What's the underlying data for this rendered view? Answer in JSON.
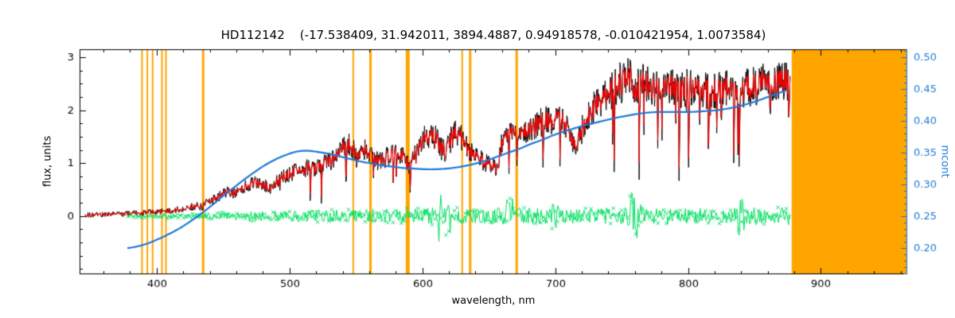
{
  "chart_data": {
    "type": "line",
    "title": "HD112142    (-17.538409, 31.942011, 3894.4887, 0.94918578, -0.010421954, 1.0073584)",
    "xlabel": "wavelength, nm",
    "ylabel_left": "flux, units",
    "ylabel_right": "mcont",
    "xlim": [
      342,
      965
    ],
    "ylim_left": [
      -1.1,
      3.15
    ],
    "ylim_right": [
      0.159,
      0.5125
    ],
    "x_ticks": [
      400,
      500,
      600,
      700,
      800,
      900
    ],
    "x_tick_labels": [
      "400",
      "500",
      "600",
      "700",
      "800",
      "900"
    ],
    "y_ticks_left": [
      0,
      1,
      2,
      3
    ],
    "y_tick_labels_left": [
      "0",
      "1",
      "2",
      "3"
    ],
    "y_ticks_right": [
      0.2,
      0.25,
      0.3,
      0.35,
      0.4,
      0.45,
      0.5
    ],
    "y_tick_labels_right": [
      "0.20",
      "0.25",
      "0.30",
      "0.35",
      "0.40",
      "0.45",
      "0.50"
    ],
    "legend": "none",
    "grid": false,
    "colors": {
      "spectrum_raw": "#000000",
      "spectrum_fit": "#ff0000",
      "residual": "#00e060",
      "continuum": "#1e78d7",
      "marker": "#ffa500",
      "background": "#ffffff"
    },
    "orange_band_nm": [
      878,
      965
    ],
    "orange_lines_nm": [
      {
        "x": 389,
        "w": 2
      },
      {
        "x": 393,
        "w": 2
      },
      {
        "x": 397,
        "w": 2
      },
      {
        "x": 404,
        "w": 2
      },
      {
        "x": 407,
        "w": 2
      },
      {
        "x": 435,
        "w": 3
      },
      {
        "x": 548,
        "w": 2
      },
      {
        "x": 561,
        "w": 3
      },
      {
        "x": 589,
        "w": 5
      },
      {
        "x": 630,
        "w": 2
      },
      {
        "x": 636,
        "w": 3
      },
      {
        "x": 671,
        "w": 3
      }
    ],
    "series": {
      "spectrum": {
        "name": "observed spectrum (black raw / red fitted)",
        "x": [
          346,
          352,
          358,
          364,
          370,
          376,
          382,
          388,
          394,
          400,
          406,
          412,
          418,
          424,
          430,
          434,
          438,
          443,
          448,
          453,
          458,
          463,
          468,
          473,
          478,
          483,
          487,
          491,
          495,
          500,
          505,
          510,
          515,
          520,
          525,
          530,
          535,
          540,
          544,
          548,
          552,
          556,
          560,
          564,
          568,
          572,
          576,
          580,
          584,
          588,
          591,
          594,
          598,
          602,
          606,
          610,
          614,
          618,
          622,
          626,
          630,
          634,
          638,
          642,
          646,
          650,
          654,
          657,
          660,
          664,
          668,
          672,
          676,
          680,
          684,
          688,
          692,
          696,
          700,
          704,
          708,
          712,
          716,
          720,
          724,
          728,
          732,
          736,
          740,
          744,
          748,
          752,
          756,
          760,
          763,
          766,
          770,
          774,
          778,
          782,
          786,
          790,
          794,
          798,
          802,
          806,
          810,
          814,
          818,
          822,
          826,
          830,
          834,
          838,
          842,
          846,
          850,
          854,
          858,
          862,
          866,
          870,
          874,
          877
        ],
        "flux": [
          0.02,
          0.02,
          0.03,
          0.03,
          0.04,
          0.04,
          0.05,
          0.06,
          0.07,
          0.09,
          0.08,
          0.1,
          0.13,
          0.16,
          0.2,
          0.17,
          0.26,
          0.32,
          0.38,
          0.45,
          0.43,
          0.52,
          0.58,
          0.62,
          0.6,
          0.57,
          0.52,
          0.66,
          0.73,
          0.78,
          0.86,
          0.82,
          0.97,
          0.88,
          1.03,
          1.02,
          1.12,
          1.25,
          1.37,
          1.28,
          1.12,
          1.27,
          1.18,
          1.04,
          1.03,
          1.1,
          1.13,
          1.2,
          1.16,
          1.05,
          0.88,
          1.14,
          1.33,
          1.47,
          1.53,
          1.49,
          1.27,
          1.23,
          1.48,
          1.57,
          1.45,
          1.25,
          1.15,
          1.1,
          1.01,
          0.99,
          0.93,
          0.9,
          1.38,
          1.53,
          1.59,
          1.55,
          1.61,
          1.69,
          1.72,
          1.77,
          1.8,
          1.77,
          1.87,
          1.92,
          1.68,
          1.45,
          1.38,
          1.62,
          1.9,
          2.04,
          2.12,
          2.2,
          2.32,
          2.42,
          2.5,
          2.55,
          2.6,
          2.24,
          2.48,
          2.5,
          2.46,
          2.41,
          2.4,
          2.45,
          2.49,
          2.45,
          2.41,
          2.4,
          2.45,
          2.49,
          2.41,
          2.36,
          2.42,
          2.32,
          2.42,
          2.38,
          2.42,
          2.3,
          2.4,
          2.43,
          2.46,
          2.5,
          2.52,
          2.5,
          2.53,
          2.55,
          2.52,
          2.55
        ]
      },
      "continuum": {
        "name": "mcont (blue, right axis)",
        "x": [
          378,
          386,
          394,
          402,
          410,
          418,
          426,
          434,
          442,
          450,
          458,
          466,
          474,
          482,
          490,
          498,
          506,
          514,
          522,
          530,
          538,
          546,
          554,
          562,
          570,
          578,
          586,
          594,
          602,
          610,
          618,
          626,
          634,
          642,
          650,
          658,
          666,
          674,
          682,
          690,
          698,
          706,
          714,
          722,
          730,
          738,
          746,
          754,
          762,
          770,
          778,
          786,
          794,
          802,
          810,
          818,
          826,
          834,
          842,
          850,
          858,
          866,
          874
        ],
        "mcont": [
          0.2,
          0.203,
          0.208,
          0.215,
          0.223,
          0.232,
          0.243,
          0.255,
          0.268,
          0.282,
          0.295,
          0.308,
          0.32,
          0.331,
          0.34,
          0.347,
          0.352,
          0.353,
          0.351,
          0.348,
          0.344,
          0.34,
          0.336,
          0.333,
          0.33,
          0.328,
          0.326,
          0.325,
          0.324,
          0.324,
          0.325,
          0.327,
          0.33,
          0.334,
          0.339,
          0.345,
          0.351,
          0.357,
          0.364,
          0.37,
          0.377,
          0.383,
          0.388,
          0.393,
          0.397,
          0.401,
          0.405,
          0.408,
          0.411,
          0.413,
          0.414,
          0.414,
          0.414,
          0.414,
          0.415,
          0.416,
          0.418,
          0.421,
          0.425,
          0.43,
          0.436,
          0.442,
          0.448
        ]
      },
      "residual": {
        "name": "residual around zero (green, x markers)",
        "x": [
          378,
          400,
          430,
          460,
          490,
          520,
          550,
          580,
          610,
          640,
          670,
          700,
          730,
          760,
          790,
          820,
          850,
          877
        ],
        "rms": [
          0.015,
          0.025,
          0.04,
          0.055,
          0.07,
          0.08,
          0.085,
          0.09,
          0.11,
          0.1,
          0.11,
          0.095,
          0.1,
          0.12,
          0.1,
          0.1,
          0.11,
          0.11
        ]
      }
    },
    "residual_spikes": [
      {
        "x": 613,
        "mult": 3.0
      },
      {
        "x": 619,
        "mult": 2.5
      },
      {
        "x": 666,
        "mult": 2.4
      },
      {
        "x": 700,
        "mult": 2.2
      },
      {
        "x": 758,
        "mult": 3.2
      },
      {
        "x": 763,
        "mult": 2.6
      },
      {
        "x": 840,
        "mult": 2.3
      }
    ]
  }
}
